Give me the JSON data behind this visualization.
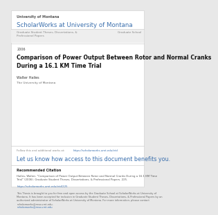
{
  "bg_color": "#e8e8e8",
  "page_bg": "#ffffff",
  "university_label": "University of Montana",
  "scholarworks_title": "ScholarWorks at University of Montana",
  "scholarworks_color": "#3a6fad",
  "nav_left": "Graduate Student Theses, Dissertations, &\nProfessional Papers",
  "nav_right": "Graduate School",
  "nav_text_color": "#888888",
  "year": "2006",
  "paper_title": "Comparison of Power Output Between Rotor and Normal Cranks\nDuring a 16.1 KM Time Trial",
  "author": "Walter Hailes",
  "affiliation": "The University of Montana",
  "follow_label": "Follow this and additional works at: ",
  "follow_link": "https://scholarworks.umt.edu/etd",
  "follow_link_color": "#3a6fad",
  "cta_text": "Let us know how access to this document benefits you.",
  "cta_color": "#3a6fad",
  "rec_citation_label": "Recommended Citation",
  "rec_citation_body": "Hailes, Walter, \"Comparison of Power Output Between Rotor and Normal Cranks During a 16.1 KM Time\nTrial\" (2006). Graduate Student Theses, Dissertations, & Professional Papers. 225.",
  "rec_citation_link": "https://scholarworks.umt.edu/etd/225",
  "rec_citation_link_color": "#3a6fad",
  "open_access_body": "This Thesis is brought to you for free and open access by the Graduate School at ScholarWorks at University of\nMontana. It has been accepted for inclusion in Graduate Student Theses, Dissertations, & Professional Papers by an\nauthorized administrator of ScholarWorks at University of Montana. For more information, please contact\nscholarworks@mso.umt.edu.",
  "open_access_link": "scholarworks@mso.umt.edu",
  "open_access_link_color": "#3a6fad",
  "divider_color": "#cccccc",
  "nav_bg": "#eeeeee",
  "small_font": 3.5,
  "large_font": 6.2,
  "title_font": 5.6,
  "cta_font": 5.8
}
